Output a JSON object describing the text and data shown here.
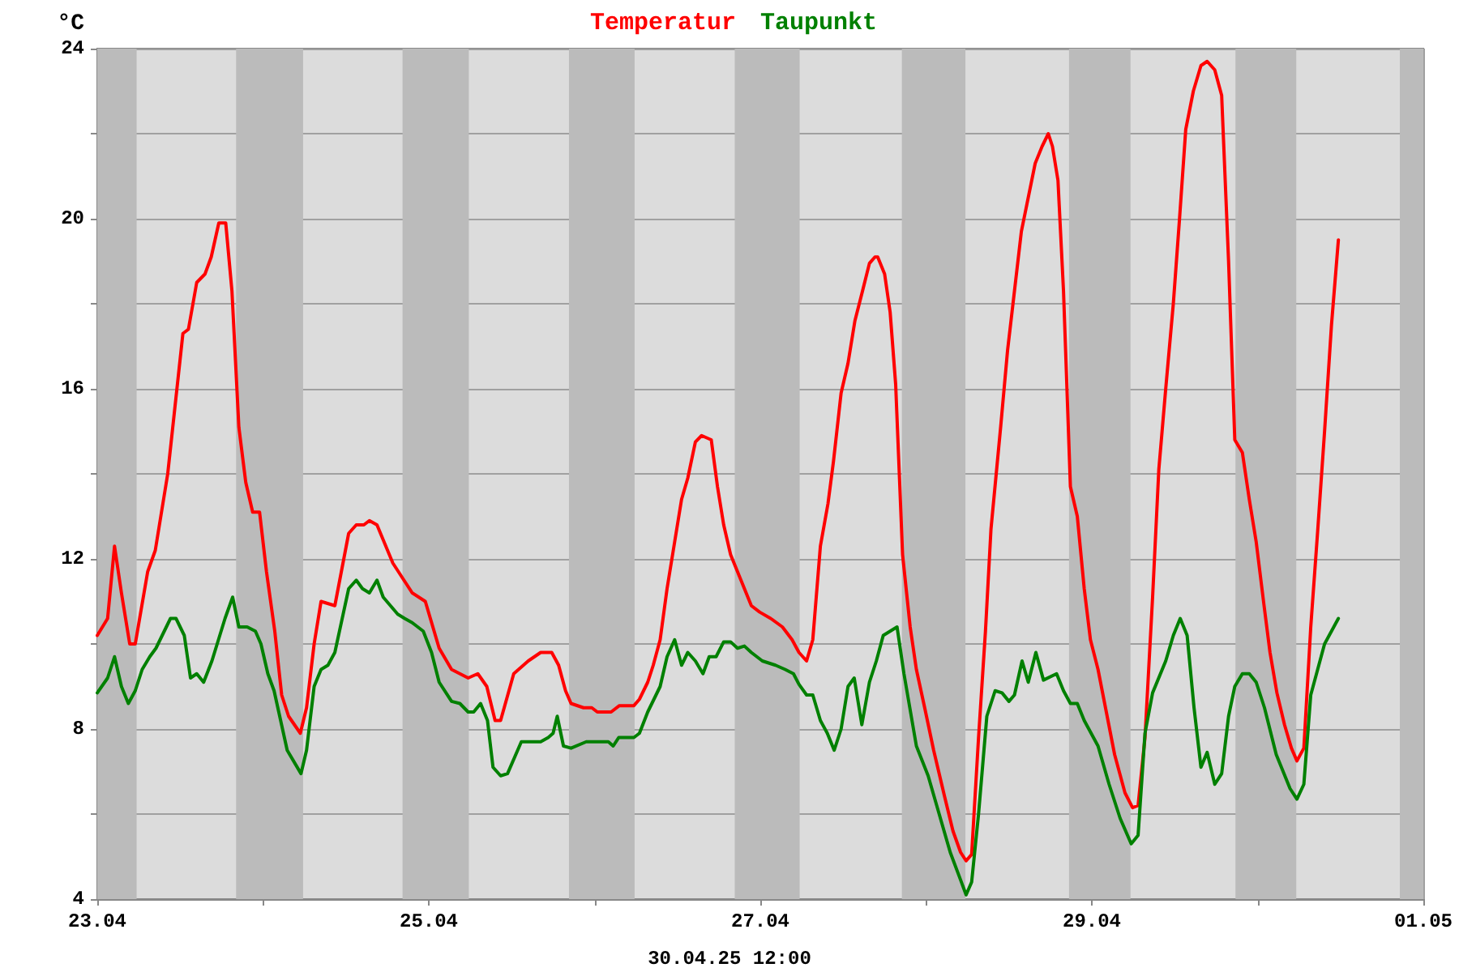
{
  "chart_data": {
    "type": "line",
    "ylabel": "°C",
    "legend": "top",
    "grid": true,
    "marker": "none",
    "line_style": "solid",
    "xlim": [
      "--04-23T00:00",
      "--05-01T00:00"
    ],
    "xticks": [
      {
        "value": "--04-23",
        "label": "23.04"
      },
      {
        "value": "--04-24",
        "label": null
      },
      {
        "value": "--04-25",
        "label": "25.04"
      },
      {
        "value": "--04-26",
        "label": null
      },
      {
        "value": "--04-27",
        "label": "27.04"
      },
      {
        "value": "--04-28",
        "label": null
      },
      {
        "value": "--04-29",
        "label": "29.04"
      },
      {
        "value": "--04-30",
        "label": null
      },
      {
        "value": "--05-01",
        "label": "01.05"
      }
    ],
    "ylim": [
      4,
      24
    ],
    "yticks": [
      4,
      {
        "value": 6,
        "label": null
      },
      8,
      {
        "value": 10,
        "label": null
      },
      12,
      {
        "value": 14,
        "label": null
      },
      16,
      {
        "value": 18,
        "label": null
      },
      20,
      {
        "value": 22,
        "label": null
      },
      24
    ],
    "annotations": [
      "30.04.25 12:00"
    ],
    "bands": [
      {
        "axis": "x",
        "from": "--04-23T00:00",
        "to": "--04-23T05:42",
        "color": "#bbbbbb"
      },
      {
        "axis": "x",
        "from": "--04-23T20:06",
        "to": "--04-24T05:48",
        "color": "#bbbbbb"
      },
      {
        "axis": "x",
        "from": "--04-24T20:12",
        "to": "--04-25T05:48",
        "color": "#bbbbbb"
      },
      {
        "axis": "x",
        "from": "--04-25T20:18",
        "to": "--04-26T05:48",
        "color": "#bbbbbb"
      },
      {
        "axis": "x",
        "from": "--04-26T20:18",
        "to": "--04-27T05:42",
        "color": "#bbbbbb"
      },
      {
        "axis": "x",
        "from": "--04-27T20:30",
        "to": "--04-28T05:42",
        "color": "#bbbbbb"
      },
      {
        "axis": "x",
        "from": "--04-28T20:42",
        "to": "--04-29T05:36",
        "color": "#bbbbbb"
      },
      {
        "axis": "x",
        "from": "--04-29T20:48",
        "to": "--04-30T05:36",
        "color": "#bbbbbb"
      },
      {
        "axis": "x",
        "from": "--04-30T20:36",
        "to": "--05-01T00:00",
        "color": "#bbbbbb"
      }
    ],
    "series": [
      {
        "name": "Temperatur",
        "color": "#ff0000",
        "x": [
          "--04-23T00:00",
          "--04-23T01:30",
          "--04-23T02:30",
          "--04-23T03:30",
          "--04-23T04:42",
          "--04-23T05:30",
          "--04-23T07:18",
          "--04-23T08:24",
          "--04-23T10:12",
          "--04-23T12:24",
          "--04-23T13:12",
          "--04-23T14:24",
          "--04-23T15:36",
          "--04-23T16:30",
          "--04-23T17:36",
          "--04-23T18:36",
          "--04-23T19:30",
          "--04-23T20:30",
          "--04-23T21:30",
          "--04-23T22:30",
          "--04-23T23:30",
          "--04-24T00:30",
          "--04-24T01:42",
          "--04-24T02:42",
          "--04-24T03:42",
          "--04-24T05:24",
          "--04-24T06:18",
          "--04-24T07:24",
          "--04-24T08:24",
          "--04-24T10:24",
          "--04-24T12:24",
          "--04-24T13:30",
          "--04-24T14:36",
          "--04-24T15:24",
          "--04-24T16:30",
          "--04-24T18:48",
          "--04-24T20:24",
          "--04-24T21:36",
          "--04-24T23:30",
          "--04-25T01:30",
          "--04-25T03:18",
          "--04-25T04:30",
          "--04-25T05:42",
          "--04-25T07:06",
          "--04-25T08:24",
          "--04-25T09:36",
          "--04-25T10:24",
          "--04-25T12:18",
          "--04-25T14:24",
          "--04-25T16:12",
          "--04-25T17:48",
          "--04-25T18:48",
          "--04-25T19:48",
          "--04-25T20:36",
          "--04-25T22:24",
          "--04-25T23:36",
          "--04-26T00:24",
          "--04-26T02:24",
          "--04-26T03:36",
          "--04-26T05:42",
          "--04-26T06:30",
          "--04-26T07:42",
          "--04-26T08:30",
          "--04-26T09:30",
          "--04-26T10:30",
          "--04-26T11:36",
          "--04-26T12:36",
          "--04-26T13:30",
          "--04-26T14:36",
          "--04-26T15:30",
          "--04-26T16:54",
          "--04-26T17:48",
          "--04-26T18:42",
          "--04-26T19:42",
          "--04-26T20:42",
          "--04-26T22:42",
          "--04-26T23:54",
          "--04-27T01:30",
          "--04-27T03:12",
          "--04-27T04:36",
          "--04-27T05:36",
          "--04-27T06:42",
          "--04-27T07:36",
          "--04-27T08:42",
          "--04-27T09:48",
          "--04-27T10:36",
          "--04-27T11:42",
          "--04-27T12:42",
          "--04-27T13:42",
          "--04-27T14:48",
          "--04-27T15:48",
          "--04-27T16:36",
          "--04-27T17:00",
          "--04-27T18:00",
          "--04-27T18:48",
          "--04-27T19:36",
          "--04-27T20:36",
          "--04-27T21:42",
          "--04-27T22:36",
          "--04-27T23:48",
          "--04-28T01:06",
          "--04-28T02:42",
          "--04-28T03:54",
          "--04-28T05:00",
          "--04-28T05:48",
          "--04-28T06:36",
          "--04-28T07:36",
          "--04-28T08:36",
          "--04-28T09:24",
          "--04-28T10:48",
          "--04-28T11:48",
          "--04-28T12:48",
          "--04-28T13:48",
          "--04-28T14:48",
          "--04-28T15:48",
          "--04-28T16:48",
          "--04-28T17:42",
          "--04-28T18:18",
          "--04-28T19:06",
          "--04-28T19:54",
          "--04-28T20:54",
          "--04-28T21:54",
          "--04-28T22:54",
          "--04-28T23:48",
          "--04-29T00:54",
          "--04-29T02:06",
          "--04-29T03:18",
          "--04-29T04:48",
          "--04-29T05:54",
          "--04-29T06:42",
          "--04-29T07:42",
          "--04-29T08:48",
          "--04-29T09:42",
          "--04-29T10:42",
          "--04-29T11:48",
          "--04-29T12:42",
          "--04-29T13:36",
          "--04-29T14:42",
          "--04-29T15:48",
          "--04-29T16:42",
          "--04-29T17:48",
          "--04-29T18:48",
          "--04-29T19:48",
          "--04-29T20:42",
          "--04-29T21:48",
          "--04-29T22:48",
          "--04-29T23:48",
          "--04-30T00:54",
          "--04-30T01:48",
          "--04-30T02:48",
          "--04-30T03:54",
          "--04-30T04:54",
          "--04-30T05:42",
          "--04-30T06:42",
          "--04-30T07:42",
          "--04-30T08:42",
          "--04-30T09:42",
          "--04-30T10:42",
          "--04-30T11:42"
        ],
        "values": [
          10.2,
          10.6,
          12.3,
          11.2,
          10,
          10,
          11.7,
          12.2,
          14,
          17.3,
          17.4,
          18.5,
          18.7,
          19.1,
          19.9,
          19.9,
          18.3,
          15.1,
          13.8,
          13.1,
          13.1,
          11.7,
          10.3,
          8.8,
          8.3,
          7.9,
          8.5,
          10,
          11,
          10.9,
          12.6,
          12.8,
          12.8,
          12.9,
          12.8,
          11.9,
          11.5,
          11.2,
          11,
          9.9,
          9.4,
          9.3,
          9.2,
          9.3,
          9,
          8.2,
          8.2,
          9.3,
          9.6,
          9.8,
          9.8,
          9.5,
          8.9,
          8.6,
          8.5,
          8.5,
          8.4,
          8.4,
          8.55,
          8.55,
          8.7,
          9.1,
          9.5,
          10.1,
          11.3,
          12.4,
          13.4,
          13.9,
          14.75,
          14.9,
          14.8,
          13.7,
          12.8,
          12.1,
          11.7,
          10.9,
          10.75,
          10.6,
          10.4,
          10.1,
          9.8,
          9.6,
          10.1,
          12.3,
          13.3,
          14.3,
          15.9,
          16.6,
          17.6,
          18.3,
          18.95,
          19.1,
          19.1,
          18.7,
          17.8,
          16.1,
          12.1,
          10.4,
          9.4,
          8.5,
          7.5,
          6.4,
          5.6,
          5.1,
          4.9,
          5.05,
          7.8,
          10.3,
          12.7,
          15.1,
          16.9,
          18.3,
          19.7,
          20.5,
          21.3,
          21.7,
          22,
          21.7,
          20.9,
          18.3,
          13.7,
          13,
          11.3,
          10.1,
          9.4,
          8.4,
          7.4,
          6.5,
          6.15,
          6.2,
          7.8,
          11.1,
          14.1,
          16,
          18,
          20,
          22.1,
          23,
          23.6,
          23.7,
          23.5,
          22.9,
          19,
          14.8,
          14.5,
          13.4,
          12.4,
          10.95,
          9.8,
          8.85,
          8.1,
          7.55,
          7.25,
          7.55,
          10.4,
          12.65,
          15,
          17.5,
          19.5
        ]
      },
      {
        "name": "Taupunkt",
        "color": "#008000",
        "x": [
          "--04-23T00:00",
          "--04-23T01:30",
          "--04-23T02:30",
          "--04-23T03:30",
          "--04-23T04:30",
          "--04-23T05:30",
          "--04-23T06:30",
          "--04-23T07:36",
          "--04-23T08:30",
          "--04-23T10:36",
          "--04-23T11:24",
          "--04-23T12:36",
          "--04-23T13:30",
          "--04-23T14:24",
          "--04-23T15:24",
          "--04-23T16:36",
          "--04-23T18:30",
          "--04-23T19:36",
          "--04-23T20:30",
          "--04-23T21:42",
          "--04-23T22:54",
          "--04-23T23:42",
          "--04-24T00:42",
          "--04-24T01:36",
          "--04-24T03:30",
          "--04-24T05:30",
          "--04-24T06:18",
          "--04-24T07:24",
          "--04-24T08:24",
          "--04-24T09:24",
          "--04-24T10:24",
          "--04-24T12:24",
          "--04-24T13:30",
          "--04-24T14:24",
          "--04-24T15:24",
          "--04-24T16:30",
          "--04-24T17:24",
          "--04-24T19:30",
          "--04-24T20:30",
          "--04-24T21:36",
          "--04-24T23:12",
          "--04-25T00:24",
          "--04-25T01:30",
          "--04-25T03:18",
          "--04-25T04:30",
          "--04-25T05:42",
          "--04-25T06:30",
          "--04-25T07:30",
          "--04-25T08:30",
          "--04-25T09:18",
          "--04-25T10:24",
          "--04-25T11:24",
          "--04-25T13:24",
          "--04-25T14:36",
          "--04-25T16:12",
          "--04-25T17:18",
          "--04-25T18:00",
          "--04-25T18:36",
          "--04-25T19:30",
          "--04-25T20:36",
          "--04-25T22:48",
          "--04-26T00:48",
          "--04-26T02:00",
          "--04-26T02:42",
          "--04-26T03:30",
          "--04-26T05:42",
          "--04-26T06:30",
          "--04-26T07:42",
          "--04-26T09:30",
          "--04-26T10:30",
          "--04-26T11:36",
          "--04-26T12:36",
          "--04-26T13:30",
          "--04-26T14:36",
          "--04-26T15:42",
          "--04-26T16:36",
          "--04-26T17:36",
          "--04-26T18:42",
          "--04-26T19:42",
          "--04-26T20:42",
          "--04-26T21:42",
          "--04-26T22:42",
          "--04-27T00:18",
          "--04-27T02:12",
          "--04-27T03:36",
          "--04-27T04:48",
          "--04-27T05:36",
          "--04-27T06:42",
          "--04-27T07:36",
          "--04-27T08:42",
          "--04-27T09:42",
          "--04-27T10:42",
          "--04-27T11:42",
          "--04-27T12:42",
          "--04-27T13:36",
          "--04-27T14:42",
          "--04-27T15:48",
          "--04-27T16:48",
          "--04-27T17:48",
          "--04-27T18:48",
          "--04-27T19:48",
          "--04-27T20:48",
          "--04-27T22:36",
          "--04-28T00:18",
          "--04-28T01:54",
          "--04-28T03:30",
          "--04-28T05:00",
          "--04-28T05:48",
          "--04-28T06:36",
          "--04-28T07:36",
          "--04-28T08:48",
          "--04-28T10:00",
          "--04-28T11:00",
          "--04-28T12:00",
          "--04-28T12:48",
          "--04-28T13:54",
          "--04-28T14:48",
          "--04-28T15:54",
          "--04-28T17:00",
          "--04-28T18:54",
          "--04-28T19:54",
          "--04-28T20:54",
          "--04-28T21:54",
          "--04-28T22:54",
          "--04-29T00:54",
          "--04-29T02:30",
          "--04-29T04:06",
          "--04-29T05:42",
          "--04-29T06:42",
          "--04-29T07:42",
          "--04-29T08:48",
          "--04-29T10:42",
          "--04-29T11:48",
          "--04-29T12:48",
          "--04-29T13:48",
          "--04-29T14:48",
          "--04-29T15:48",
          "--04-29T16:42",
          "--04-29T17:48",
          "--04-29T18:48",
          "--04-29T19:48",
          "--04-29T20:42",
          "--04-29T21:48",
          "--04-29T22:48",
          "--04-29T23:48",
          "--04-30T01:00",
          "--04-30T02:42",
          "--04-30T04:42",
          "--04-30T05:42",
          "--04-30T06:42",
          "--04-30T07:42",
          "--04-30T08:42",
          "--04-30T09:42",
          "--04-30T11:42"
        ],
        "values": [
          8.85,
          9.2,
          9.7,
          9,
          8.6,
          8.9,
          9.4,
          9.7,
          9.9,
          10.6,
          10.6,
          10.2,
          9.2,
          9.3,
          9.1,
          9.6,
          10.6,
          11.1,
          10.4,
          10.4,
          10.3,
          10,
          9.3,
          8.9,
          7.5,
          6.95,
          7.5,
          9,
          9.4,
          9.5,
          9.8,
          11.3,
          11.5,
          11.3,
          11.2,
          11.5,
          11.1,
          10.7,
          10.6,
          10.5,
          10.3,
          9.8,
          9.1,
          8.65,
          8.6,
          8.4,
          8.4,
          8.6,
          8.2,
          7.1,
          6.9,
          6.95,
          7.7,
          7.7,
          7.7,
          7.8,
          7.9,
          8.3,
          7.6,
          7.55,
          7.7,
          7.7,
          7.7,
          7.6,
          7.8,
          7.8,
          7.9,
          8.4,
          9,
          9.7,
          10.1,
          9.5,
          9.8,
          9.6,
          9.3,
          9.7,
          9.7,
          10.05,
          10.05,
          9.9,
          9.95,
          9.8,
          9.6,
          9.5,
          9.4,
          9.3,
          9.05,
          8.8,
          8.8,
          8.2,
          7.9,
          7.5,
          8,
          9,
          9.2,
          8.1,
          9.1,
          9.6,
          10.2,
          10.3,
          10.4,
          9.3,
          7.6,
          6.9,
          6,
          5.1,
          4.45,
          4.1,
          4.4,
          6,
          8.3,
          8.9,
          8.85,
          8.65,
          8.8,
          9.6,
          9.1,
          9.8,
          9.15,
          9.3,
          8.9,
          8.6,
          8.6,
          8.2,
          7.6,
          6.7,
          5.9,
          5.3,
          5.5,
          7.9,
          8.85,
          9.6,
          10.2,
          10.6,
          10.2,
          8.5,
          7.1,
          7.45,
          6.7,
          6.95,
          8.3,
          9,
          9.3,
          9.3,
          9.1,
          8.5,
          7.4,
          6.6,
          6.35,
          6.7,
          8.8,
          9.4,
          10,
          10.6
        ]
      }
    ]
  }
}
